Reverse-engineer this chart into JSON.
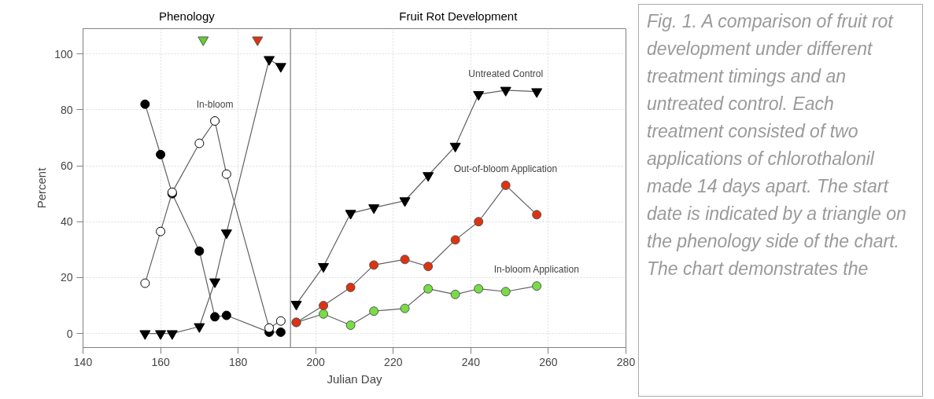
{
  "chart_data": {
    "type": "line",
    "xlabel": "Julian Day",
    "ylabel": "Percent",
    "xlim": [
      140,
      280
    ],
    "xticks": [
      140,
      160,
      180,
      200,
      220,
      240,
      260,
      280
    ],
    "ylim": [
      -5,
      109
    ],
    "yticks": [
      0,
      20,
      40,
      60,
      80,
      100
    ],
    "grid": true,
    "marker": "circle",
    "ref_lines": [
      {
        "axis": "x",
        "value": 193.5,
        "label": null,
        "color": "#808080"
      }
    ],
    "annotations": [
      "Phenology",
      "Fruit Rot Development",
      "Fig. 1.  A comparison of fruit rot development under different treatment timings and an untreated control.  Each treatment consisted of two applications of chlorothalonil made 14 days apart.  The start date is indicated by a triangle on the phenology side of the chart.  The chart demonstrates the"
    ],
    "series": [
      {
        "color": "#000000",
        "x": [
          156,
          160,
          163,
          170,
          174,
          177,
          188,
          191
        ],
        "values": [
          82,
          64,
          50,
          29.5,
          6,
          6.5,
          0.5,
          0.5
        ]
      },
      {
        "name": "In-bloom",
        "color": "#ffffff",
        "x": [
          156,
          160,
          163,
          170,
          174,
          177,
          188,
          191
        ],
        "values": [
          18,
          36.5,
          50.5,
          68,
          76,
          57,
          2,
          4.5
        ]
      },
      {
        "color": "#000000",
        "marker": "triangle",
        "x": [
          156,
          160,
          163,
          170,
          174,
          177,
          188,
          191
        ],
        "values": [
          0,
          0,
          0,
          2.5,
          18.5,
          36,
          98,
          95.5
        ]
      },
      {
        "name": "Untreated Control",
        "color": "#000000",
        "marker": "triangle",
        "x": [
          195,
          202,
          209,
          215,
          223,
          229,
          236,
          242,
          249,
          257
        ],
        "values": [
          10.5,
          24,
          43,
          45,
          47.5,
          56.5,
          67,
          85.5,
          87,
          86.5
        ]
      },
      {
        "name": "In-bloom Application",
        "color": "#77dd44",
        "x": [
          195,
          202,
          209,
          215,
          223,
          229,
          236,
          242,
          249,
          257
        ],
        "values": [
          4,
          7,
          3,
          8,
          9,
          16,
          14,
          16,
          15,
          17
        ]
      },
      {
        "name": "Out-of-bloom Application",
        "color": "#dd3311",
        "x": [
          195,
          202,
          209,
          215,
          223,
          229,
          236,
          242,
          249,
          257
        ],
        "values": [
          4,
          10,
          16.5,
          24.5,
          26.5,
          24,
          33.5,
          40,
          53,
          42.5
        ]
      },
      {
        "type": "scatter",
        "marker": "triangle",
        "color": "#66cc33",
        "x": [
          171
        ],
        "values": [
          105
        ]
      },
      {
        "type": "scatter",
        "marker": "triangle",
        "color": "#dd3311",
        "x": [
          185
        ],
        "values": [
          105
        ]
      }
    ]
  }
}
